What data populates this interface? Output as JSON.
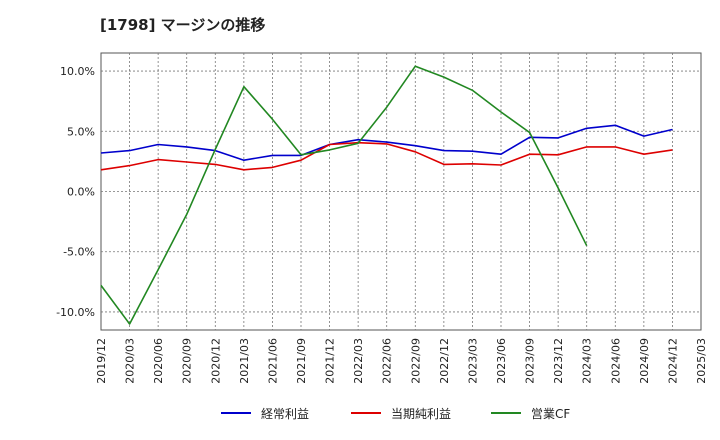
{
  "chart_data": {
    "type": "line",
    "title": "[1798]  マージンの推移",
    "xlabel": "",
    "ylabel": "",
    "x": [
      "2019/12",
      "2020/03",
      "2020/06",
      "2020/09",
      "2020/12",
      "2021/03",
      "2021/06",
      "2021/09",
      "2021/12",
      "2022/03",
      "2022/06",
      "2022/09",
      "2022/12",
      "2023/03",
      "2023/06",
      "2023/09",
      "2023/12",
      "2024/03",
      "2024/06",
      "2024/09",
      "2024/12",
      "2025/03"
    ],
    "ylim": [
      -11.5,
      11.5
    ],
    "yticks": [
      10,
      5,
      0,
      -5,
      -10
    ],
    "ytick_labels": [
      "10.0%",
      "5.0%",
      "0.0%",
      "-5.0%",
      "-10.0%"
    ],
    "grid": true,
    "legend_position": "bottom",
    "series": [
      {
        "name": "経常利益",
        "color": "#0000cc",
        "values": [
          3.2,
          3.4,
          3.9,
          3.7,
          3.4,
          2.6,
          3.0,
          3.0,
          3.9,
          4.3,
          4.1,
          3.8,
          3.4,
          3.35,
          3.1,
          4.5,
          4.45,
          5.25,
          5.5,
          4.6,
          5.15,
          null
        ]
      },
      {
        "name": "当期純利益",
        "color": "#dd0000",
        "values": [
          1.8,
          2.15,
          2.65,
          2.45,
          2.25,
          1.8,
          2.0,
          2.6,
          3.9,
          4.05,
          3.95,
          3.3,
          2.25,
          2.3,
          2.2,
          3.1,
          3.05,
          3.7,
          3.7,
          3.1,
          3.45,
          null
        ]
      },
      {
        "name": "営業CF",
        "color": "#228822",
        "values": [
          -7.8,
          -11.0,
          -6.5,
          -1.9,
          3.5,
          8.7,
          6.0,
          3.05,
          3.45,
          4.0,
          7.0,
          10.4,
          9.5,
          8.4,
          6.6,
          4.9,
          0.3,
          -4.5,
          null,
          null,
          null,
          null
        ]
      }
    ]
  }
}
